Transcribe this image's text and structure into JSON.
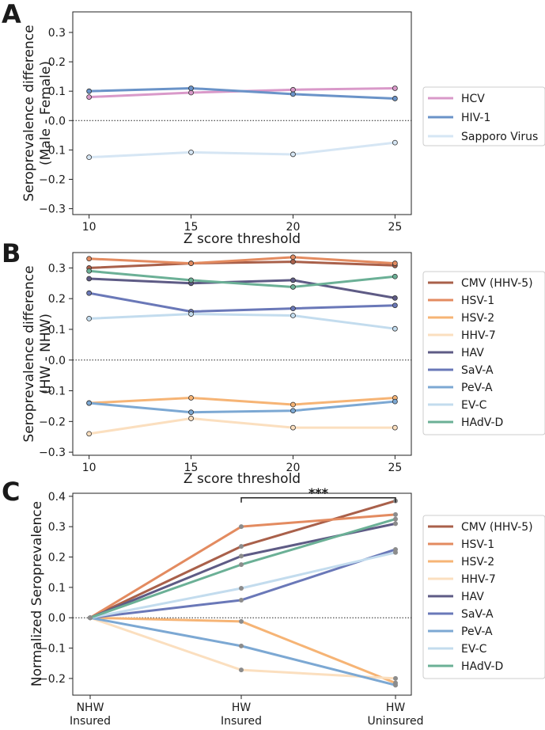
{
  "chart_data": [
    {
      "panel_label": "A",
      "type": "line",
      "x": [
        10,
        15,
        20,
        25
      ],
      "xlabel": "Z score threshold",
      "ylabel": [
        "Seroprevalence difference",
        "(Male - Female)"
      ],
      "ylim": [
        -0.32,
        0.37
      ],
      "yticks": [
        -0.3,
        -0.2,
        -0.1,
        0.0,
        0.1,
        0.2,
        0.3
      ],
      "ytick_labels": [
        "−0.3",
        "−0.2",
        "−0.1",
        "0.0",
        "0.1",
        "0.2",
        "0.3"
      ],
      "xticks": [
        10,
        15,
        20,
        25
      ],
      "xtick_labels": [
        "10",
        "15",
        "20",
        "25"
      ],
      "xlim": [
        9.2,
        25.8
      ],
      "zero_line": true,
      "series": [
        {
          "name": "HCV",
          "color": "#d999c9",
          "values": [
            0.08,
            0.095,
            0.105,
            0.11
          ]
        },
        {
          "name": "HIV-1",
          "color": "#6a93c8",
          "values": [
            0.1,
            0.11,
            0.09,
            0.075
          ]
        },
        {
          "name": "Sapporo Virus",
          "color": "#d6e6f4",
          "values": [
            -0.125,
            -0.108,
            -0.115,
            -0.075
          ]
        }
      ]
    },
    {
      "panel_label": "B",
      "type": "line",
      "x": [
        10,
        15,
        20,
        25
      ],
      "xlabel": "Z score threshold",
      "ylabel": [
        "Seroprevalence difference",
        "(HW - NHW)"
      ],
      "ylim": [
        -0.31,
        0.35
      ],
      "yticks": [
        -0.3,
        -0.2,
        -0.1,
        0.0,
        0.1,
        0.2,
        0.3
      ],
      "ytick_labels": [
        "−0.3",
        "−0.2",
        "−0.1",
        "0.0",
        "0.1",
        "0.2",
        "0.3"
      ],
      "xticks": [
        10,
        15,
        20,
        25
      ],
      "xtick_labels": [
        "10",
        "15",
        "20",
        "25"
      ],
      "xlim": [
        9.2,
        25.8
      ],
      "zero_line": true,
      "series": [
        {
          "name": "CMV (HHV-5)",
          "color": "#a9604a",
          "values": [
            0.3,
            0.315,
            0.32,
            0.308
          ]
        },
        {
          "name": "HSV-1",
          "color": "#e38b60",
          "values": [
            0.33,
            0.315,
            0.335,
            0.315
          ]
        },
        {
          "name": "HSV-2",
          "color": "#f6b475",
          "values": [
            -0.14,
            -0.123,
            -0.145,
            -0.123
          ]
        },
        {
          "name": "HHV-7",
          "color": "#fbdfbf",
          "values": [
            -0.24,
            -0.19,
            -0.22,
            -0.22
          ]
        },
        {
          "name": "HAV",
          "color": "#5e5b85",
          "values": [
            0.265,
            0.25,
            0.26,
            0.202
          ]
        },
        {
          "name": "SaV-A",
          "color": "#6a78b8",
          "values": [
            0.218,
            0.158,
            0.168,
            0.178
          ]
        },
        {
          "name": "PeV-A",
          "color": "#7ca8d3",
          "values": [
            -0.14,
            -0.17,
            -0.165,
            -0.135
          ]
        },
        {
          "name": "EV-C",
          "color": "#c3dcee",
          "values": [
            0.135,
            0.15,
            0.145,
            0.102
          ]
        },
        {
          "name": "HAdV-D",
          "color": "#6bb096",
          "values": [
            0.29,
            0.26,
            0.238,
            0.272
          ]
        }
      ]
    },
    {
      "panel_label": "C",
      "type": "line",
      "categories": [
        "NHW\nInsured",
        "HW\nInsured",
        "HW\nUninsured"
      ],
      "category_lines": [
        [
          "NHW",
          "Insured"
        ],
        [
          "HW",
          "Insured"
        ],
        [
          "HW",
          "Uninsured"
        ]
      ],
      "xlabel": "",
      "ylabel": [
        "Normalized Seroprevalence"
      ],
      "ylim": [
        -0.255,
        0.41
      ],
      "yticks": [
        -0.2,
        -0.1,
        0.0,
        0.1,
        0.2,
        0.3,
        0.4
      ],
      "ytick_labels": [
        "−0.2",
        "−0.1",
        "0.0",
        "0.1",
        "0.2",
        "0.3",
        "0.4"
      ],
      "zero_line": true,
      "significance": {
        "label": "***",
        "from_category": 1,
        "to_category": 2,
        "y": 0.395
      },
      "series": [
        {
          "name": "CMV (HHV-5)",
          "color": "#a9604a",
          "values": [
            0,
            0.235,
            0.385
          ]
        },
        {
          "name": "HSV-1",
          "color": "#e38b60",
          "values": [
            0,
            0.3,
            0.34
          ]
        },
        {
          "name": "HSV-2",
          "color": "#f6b475",
          "values": [
            0,
            -0.012,
            -0.215
          ]
        },
        {
          "name": "HHV-7",
          "color": "#fbdfbf",
          "values": [
            0,
            -0.172,
            -0.2
          ]
        },
        {
          "name": "HAV",
          "color": "#5e5b85",
          "values": [
            0,
            0.203,
            0.31
          ]
        },
        {
          "name": "SaV-A",
          "color": "#6a78b8",
          "values": [
            0,
            0.058,
            0.225
          ]
        },
        {
          "name": "PeV-A",
          "color": "#7ca8d3",
          "values": [
            0,
            -0.093,
            -0.222
          ]
        },
        {
          "name": "EV-C",
          "color": "#c3dcee",
          "values": [
            0,
            0.097,
            0.215
          ]
        },
        {
          "name": "HAdV-D",
          "color": "#6bb096",
          "values": [
            0,
            0.175,
            0.325
          ]
        }
      ]
    }
  ]
}
